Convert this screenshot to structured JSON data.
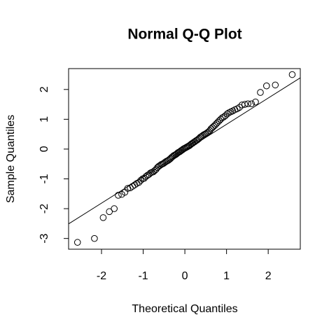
{
  "chart_data": {
    "type": "scatter",
    "title": "Normal Q-Q Plot",
    "x_label": "Theoretical Quantiles",
    "y_label": "Sample Quantiles",
    "xlim": [
      -2.79,
      2.77
    ],
    "ylim": [
      -3.36,
      2.7
    ],
    "xticks": [
      -2,
      -1,
      0,
      1,
      2
    ],
    "yticks": [
      -3,
      -2,
      -1,
      0,
      1,
      2
    ],
    "grid": false,
    "color": "#000000",
    "x": [
      -2.576,
      -2.17,
      -1.96,
      -1.812,
      -1.695,
      -1.598,
      -1.514,
      -1.44,
      -1.372,
      -1.311,
      -1.254,
      -1.2,
      -1.15,
      -1.103,
      -1.058,
      -1.015,
      -0.974,
      -0.935,
      -0.896,
      -0.86,
      -0.824,
      -0.789,
      -0.755,
      -0.722,
      -0.69,
      -0.659,
      -0.628,
      -0.598,
      -0.568,
      -0.539,
      -0.51,
      -0.482,
      -0.454,
      -0.426,
      -0.399,
      -0.372,
      -0.345,
      -0.319,
      -0.292,
      -0.266,
      -0.24,
      -0.215,
      -0.189,
      -0.164,
      -0.138,
      -0.113,
      -0.088,
      -0.063,
      -0.038,
      -0.013,
      0.013,
      0.038,
      0.063,
      0.088,
      0.113,
      0.138,
      0.164,
      0.189,
      0.215,
      0.24,
      0.266,
      0.292,
      0.319,
      0.345,
      0.372,
      0.399,
      0.426,
      0.454,
      0.482,
      0.51,
      0.539,
      0.568,
      0.598,
      0.628,
      0.659,
      0.69,
      0.722,
      0.755,
      0.789,
      0.824,
      0.86,
      0.896,
      0.935,
      0.974,
      1.015,
      1.058,
      1.103,
      1.15,
      1.2,
      1.254,
      1.311,
      1.372,
      1.44,
      1.514,
      1.598,
      1.695,
      1.812,
      1.96,
      2.17,
      2.576
    ],
    "values": [
      -3.13,
      -3.0,
      -2.3,
      -2.1,
      -2.0,
      -1.55,
      -1.52,
      -1.45,
      -1.32,
      -1.3,
      -1.25,
      -1.2,
      -1.15,
      -1.12,
      -1.05,
      -1.0,
      -0.98,
      -0.92,
      -0.88,
      -0.85,
      -0.8,
      -0.78,
      -0.76,
      -0.72,
      -0.68,
      -0.62,
      -0.58,
      -0.55,
      -0.52,
      -0.5,
      -0.48,
      -0.45,
      -0.42,
      -0.4,
      -0.38,
      -0.35,
      -0.32,
      -0.28,
      -0.25,
      -0.22,
      -0.2,
      -0.18,
      -0.15,
      -0.12,
      -0.1,
      -0.08,
      -0.05,
      -0.03,
      0.0,
      0.02,
      0.04,
      0.06,
      0.08,
      0.1,
      0.12,
      0.15,
      0.18,
      0.2,
      0.23,
      0.25,
      0.28,
      0.3,
      0.33,
      0.36,
      0.4,
      0.42,
      0.45,
      0.48,
      0.5,
      0.52,
      0.55,
      0.58,
      0.62,
      0.68,
      0.72,
      0.76,
      0.8,
      0.85,
      0.9,
      0.95,
      1.0,
      1.05,
      1.08,
      1.12,
      1.18,
      1.22,
      1.25,
      1.28,
      1.32,
      1.35,
      1.4,
      1.48,
      1.5,
      1.52,
      1.52,
      1.58,
      1.9,
      2.12,
      2.15,
      2.5
    ],
    "reference_line": {
      "x": [
        -2.79,
        2.77
      ],
      "y": [
        -2.51,
        2.39
      ]
    }
  }
}
